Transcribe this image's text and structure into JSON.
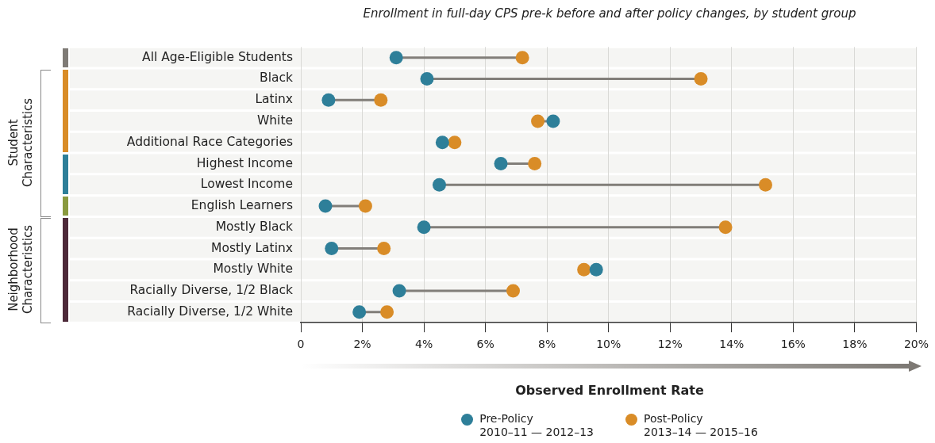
{
  "chart_data": {
    "type": "scatter",
    "orientation": "horizontal",
    "title": "Enrollment in full-day CPS pre-k before and after policy changes, by student group",
    "xlabel": "Observed Enrollment Rate",
    "categories": [
      "All Age-Eligible Students",
      "Black",
      "Latinx",
      "White",
      "Additional Race Categories",
      "Highest Income",
      "Lowest Income",
      "English Learners",
      "Mostly Black",
      "Mostly Latinx",
      "Mostly White",
      "Racially Diverse, 1/2 Black",
      "Racially Diverse, 1/2 White"
    ],
    "series": [
      {
        "name": "Pre-Policy\n2010–11 — 2012–13",
        "color": "#2e7f99",
        "values": [
          3.1,
          4.1,
          0.9,
          8.2,
          4.6,
          6.5,
          4.5,
          0.8,
          4.0,
          1.0,
          9.6,
          3.2,
          1.9
        ]
      },
      {
        "name": "Post-Policy\n2013–14 — 2015–16",
        "color": "#d98c27",
        "values": [
          7.2,
          13.0,
          2.6,
          7.7,
          5.0,
          7.6,
          15.1,
          2.1,
          13.8,
          2.7,
          9.2,
          6.9,
          2.8
        ]
      }
    ],
    "xlim": [
      0,
      20
    ],
    "xticks": [
      0,
      {
        "value": 2,
        "label": "2%"
      },
      {
        "value": 4,
        "label": "4%"
      },
      {
        "value": 6,
        "label": "6%"
      },
      {
        "value": 8,
        "label": "8%"
      },
      {
        "value": 10,
        "label": "10%"
      },
      {
        "value": 12,
        "label": "12%"
      },
      {
        "value": 14,
        "label": "14%"
      },
      {
        "value": 16,
        "label": "16%"
      },
      {
        "value": 18,
        "label": "18%"
      },
      {
        "value": 20,
        "label": "20%"
      }
    ],
    "annotations": [
      "Student Characteristics",
      "Neighborhood Characteristics"
    ],
    "grid": "x",
    "legend": "bottom",
    "marker": "circle"
  }
}
